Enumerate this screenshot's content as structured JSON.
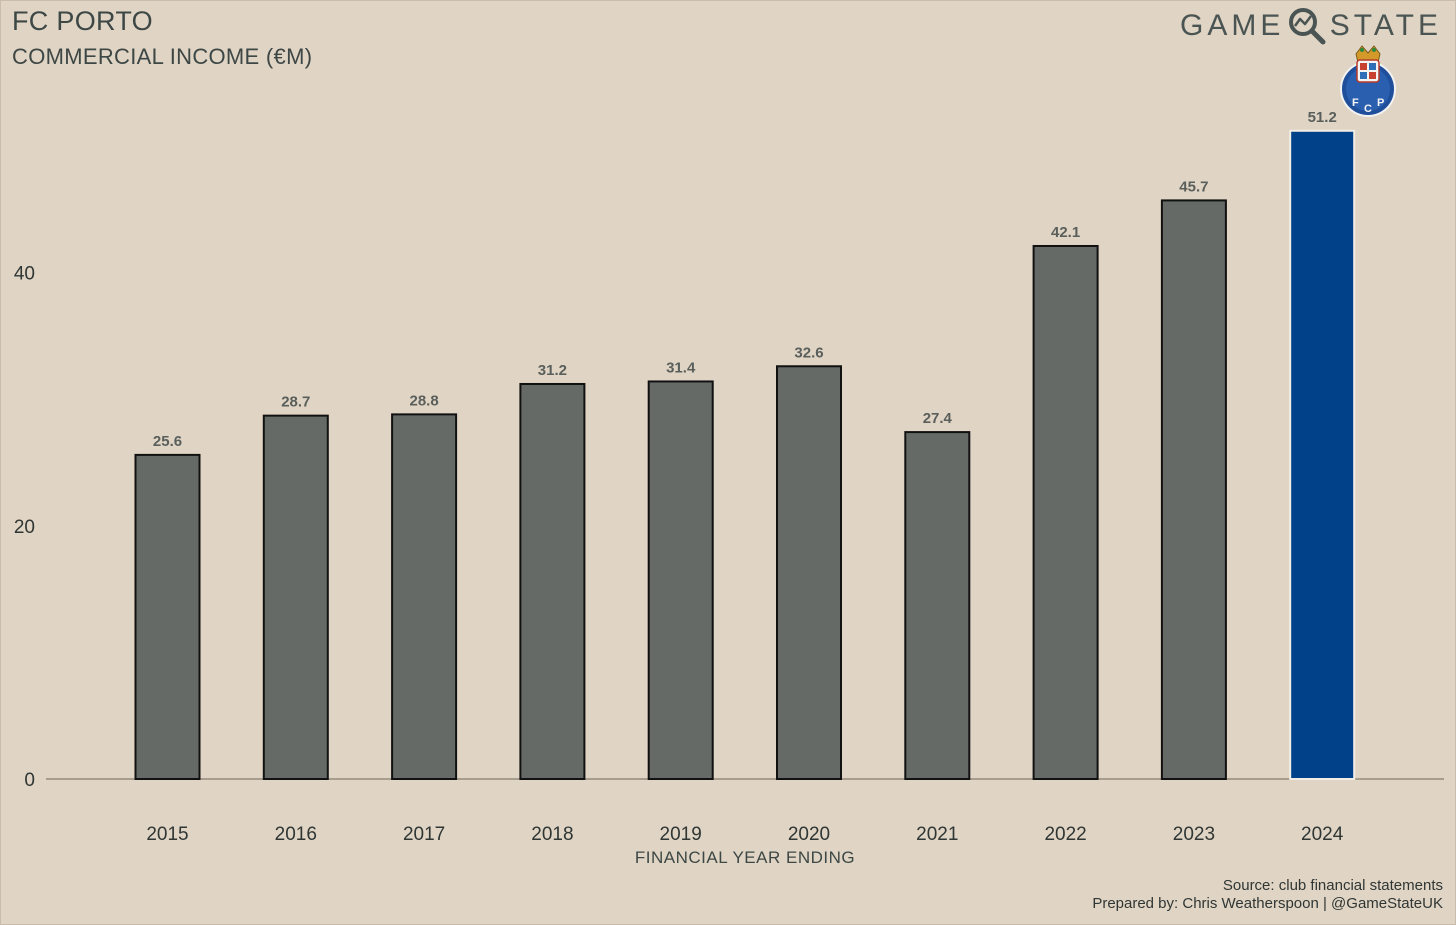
{
  "header": {
    "title": "FC PORTO",
    "subtitle": "COMMERCIAL INCOME (€M)"
  },
  "brand": {
    "word_left": "GAME",
    "word_right": "STATE",
    "icon": "magnifier-icon",
    "crest": "fc-porto-crest-icon"
  },
  "footer": {
    "source": "Source: club financial statements",
    "credit": "Prepared by: Chris Weatherspoon | @GameStateUK"
  },
  "colors": {
    "bar": "#656a66",
    "highlight": "#00418a",
    "background": "#e0d4c4"
  },
  "chart_data": {
    "type": "bar",
    "xlabel": "FINANCIAL YEAR ENDING",
    "ylabel": "",
    "categories": [
      "2015",
      "2016",
      "2017",
      "2018",
      "2019",
      "2020",
      "2021",
      "2022",
      "2023",
      "2024"
    ],
    "values": [
      25.6,
      28.7,
      28.8,
      31.2,
      31.4,
      32.6,
      27.4,
      42.1,
      45.7,
      51.2
    ],
    "data_labels": [
      "25.6",
      "28.7",
      "28.8",
      "31.2",
      "31.4",
      "32.6",
      "27.4",
      "42.1",
      "45.7",
      "51.2"
    ],
    "highlight_category": "2024",
    "yticks": [
      0,
      20,
      40
    ],
    "ytick_labels": [
      "0",
      "20",
      "40"
    ],
    "ylim": [
      0,
      56
    ],
    "grid": false,
    "legend": "none"
  }
}
